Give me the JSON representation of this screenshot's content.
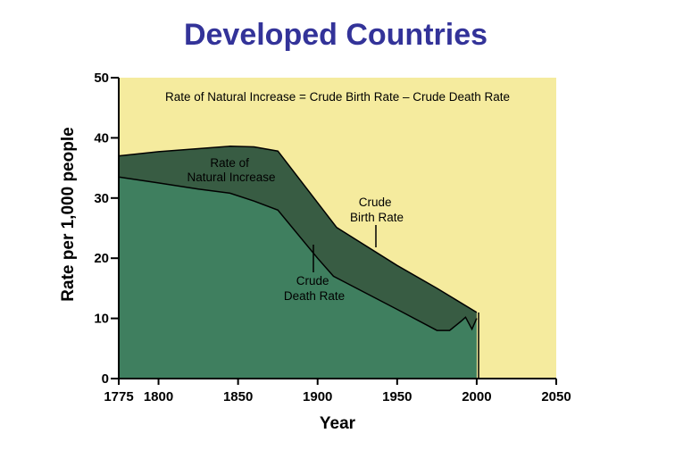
{
  "chart_data": {
    "type": "area",
    "title": "Developed Countries",
    "subtitle": "Rate of Natural Increase = Crude Birth Rate – Crude Death Rate",
    "xlabel": "Year",
    "ylabel": "Rate per 1,000 people",
    "xlim": [
      1775,
      2050
    ],
    "ylim": [
      0,
      50
    ],
    "x_ticks": [
      1775,
      1800,
      1850,
      1900,
      1950,
      2000,
      2050
    ],
    "y_ticks": [
      0,
      10,
      20,
      30,
      40,
      50
    ],
    "series": [
      {
        "name": "Crude Birth Rate",
        "points": [
          [
            1775,
            37
          ],
          [
            1800,
            37.7
          ],
          [
            1825,
            38.2
          ],
          [
            1845,
            38.6
          ],
          [
            1860,
            38.5
          ],
          [
            1875,
            37.8
          ],
          [
            1912,
            25.1
          ],
          [
            1950,
            18.8
          ],
          [
            1975,
            15
          ],
          [
            2000,
            11
          ]
        ]
      },
      {
        "name": "Crude Death Rate",
        "points": [
          [
            1775,
            33.5
          ],
          [
            1800,
            32.5
          ],
          [
            1825,
            31.5
          ],
          [
            1845,
            30.8
          ],
          [
            1860,
            29.5
          ],
          [
            1875,
            28
          ],
          [
            1900,
            20
          ],
          [
            1910,
            17
          ],
          [
            1950,
            11.5
          ],
          [
            1975,
            8
          ],
          [
            1983,
            8
          ],
          [
            1990,
            9.5
          ],
          [
            1993,
            10.2
          ],
          [
            1997,
            8.2
          ],
          [
            2000,
            10
          ]
        ]
      }
    ],
    "annotations": [
      {
        "name": "natural-increase",
        "lines": [
          "Rate of",
          "Natural Increase"
        ]
      },
      {
        "name": "birth-rate",
        "lines": [
          "Crude",
          "Birth Rate"
        ]
      },
      {
        "name": "death-rate",
        "lines": [
          "Crude",
          "Death Rate"
        ]
      }
    ],
    "colors": {
      "background": "#f5eb9e",
      "death_area": "#3f7f5f",
      "natural_increase_area": "#385c43",
      "title": "#333399"
    }
  }
}
